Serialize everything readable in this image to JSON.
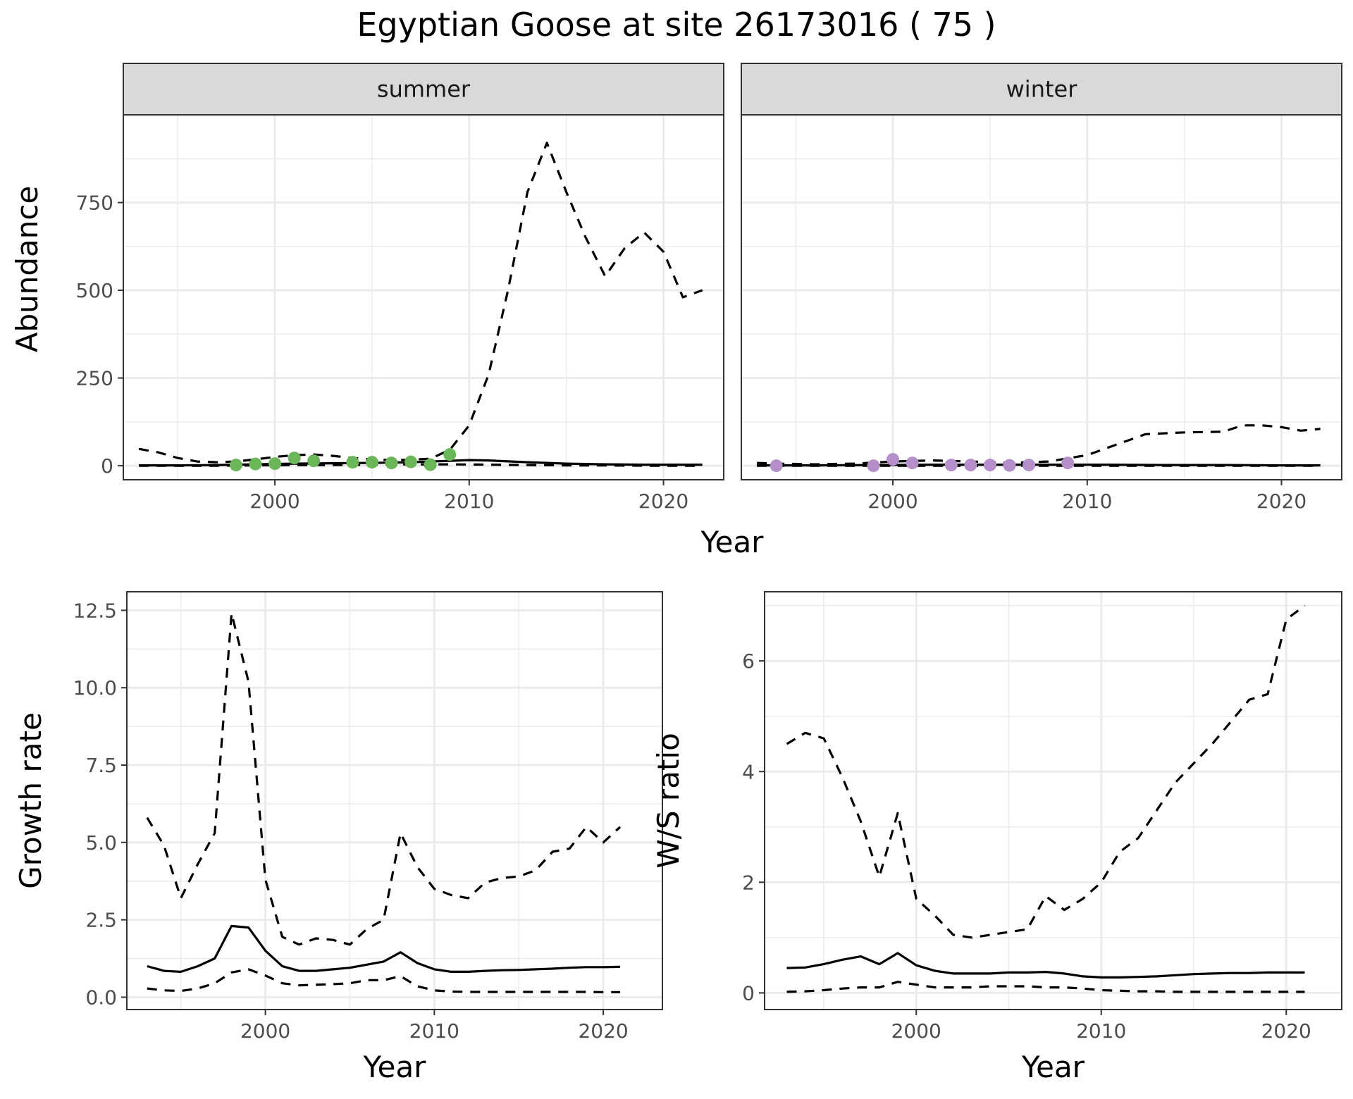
{
  "title": "Egyptian Goose at site 26173016 ( 75 )",
  "colors": {
    "summer_points": "#6ab659",
    "winter_points": "#b48fc9",
    "grid": "#ebebeb",
    "strip": "#d9d9d9",
    "line": "#000000"
  },
  "chart_data": [
    {
      "type": "line",
      "panel": "summer",
      "strip_label": "summer",
      "xlabel": "Year",
      "ylabel": "Abundance",
      "xlim": [
        1992.2,
        2023.1
      ],
      "ylim": [
        -40,
        1000
      ],
      "x_ticks": [
        2000,
        2010,
        2020
      ],
      "y_ticks": [
        0,
        250,
        500,
        750
      ],
      "series": [
        {
          "style": "solid",
          "x": [
            1993,
            1995,
            1997,
            1999,
            2001,
            2003,
            2005,
            2007,
            2009,
            2010,
            2011,
            2013,
            2015,
            2017,
            2019,
            2021,
            2022
          ],
          "y": [
            1,
            1,
            2,
            4,
            6,
            7,
            8,
            10,
            14,
            16,
            15,
            10,
            6,
            4,
            3,
            3,
            3
          ]
        },
        {
          "style": "dashed-upper",
          "x": [
            1993,
            1994,
            1995,
            1996,
            1997,
            1998,
            1999,
            2000,
            2001,
            2002,
            2003,
            2004,
            2005,
            2006,
            2007,
            2008,
            2009,
            2010,
            2011,
            2012,
            2013,
            2014,
            2015,
            2016,
            2017,
            2018,
            2019,
            2020,
            2021,
            2022
          ],
          "y": [
            48,
            38,
            22,
            12,
            10,
            12,
            18,
            25,
            30,
            32,
            28,
            22,
            18,
            16,
            17,
            20,
            45,
            115,
            260,
            500,
            780,
            920,
            780,
            650,
            540,
            620,
            665,
            610,
            480,
            500
          ]
        },
        {
          "style": "dashed-lower",
          "x": [
            1993,
            1995,
            1997,
            1999,
            2001,
            2003,
            2005,
            2007,
            2009,
            2011,
            2013,
            2015,
            2017,
            2019,
            2021,
            2022
          ],
          "y": [
            0,
            0,
            0,
            1,
            2,
            2,
            3,
            4,
            4,
            3,
            2,
            1,
            1,
            0,
            0,
            0
          ]
        },
        {
          "style": "points",
          "x": [
            1998,
            1999,
            2000,
            2001,
            2002,
            2004,
            2005,
            2006,
            2007,
            2008,
            2009
          ],
          "y": [
            2,
            5,
            6,
            22,
            14,
            10,
            10,
            8,
            11,
            3,
            32
          ]
        }
      ]
    },
    {
      "type": "line",
      "panel": "winter",
      "strip_label": "winter",
      "xlabel": "Year",
      "ylabel": "",
      "xlim": [
        1992.2,
        2023.1
      ],
      "ylim": [
        -40,
        1000
      ],
      "x_ticks": [
        2000,
        2010,
        2020
      ],
      "y_ticks": [
        0,
        250,
        500,
        750
      ],
      "series": [
        {
          "style": "solid",
          "x": [
            1993,
            1996,
            1999,
            2002,
            2005,
            2008,
            2011,
            2014,
            2017,
            2020,
            2022
          ],
          "y": [
            1,
            1,
            2,
            3,
            3,
            3,
            3,
            2,
            2,
            1,
            1
          ]
        },
        {
          "style": "dashed-upper",
          "x": [
            1993,
            1994,
            1996,
            1998,
            2000,
            2002,
            2004,
            2006,
            2008,
            2010,
            2012,
            2013,
            2015,
            2017,
            2018,
            2019,
            2020,
            2021,
            2022
          ],
          "y": [
            8,
            6,
            4,
            6,
            12,
            15,
            12,
            8,
            12,
            30,
            70,
            90,
            95,
            97,
            115,
            115,
            110,
            100,
            105
          ]
        },
        {
          "style": "dashed-lower",
          "x": [
            1993,
            1996,
            2000,
            2004,
            2008,
            2012,
            2016,
            2020,
            2022
          ],
          "y": [
            0,
            0,
            0,
            0,
            0,
            0,
            0,
            0,
            0
          ]
        },
        {
          "style": "points",
          "x": [
            1994,
            1999,
            2000,
            2001,
            2003,
            2004,
            2005,
            2006,
            2007,
            2009
          ],
          "y": [
            0,
            0,
            18,
            8,
            2,
            2,
            2,
            1,
            2,
            8
          ]
        }
      ]
    },
    {
      "type": "line",
      "panel": "growth",
      "xlabel": "Year",
      "ylabel": "Growth rate",
      "xlim": [
        1991.8,
        2023.5
      ],
      "ylim": [
        -0.4,
        13.1
      ],
      "x_ticks": [
        2000,
        2010,
        2020
      ],
      "y_ticks": [
        0.0,
        2.5,
        5.0,
        7.5,
        10.0,
        12.5
      ],
      "y_tick_labels": [
        "0.0",
        "2.5",
        "5.0",
        "7.5",
        "10.0",
        "12.5"
      ],
      "series": [
        {
          "style": "solid",
          "x": [
            1993,
            1994,
            1995,
            1996,
            1997,
            1998,
            1999,
            2000,
            2001,
            2002,
            2003,
            2004,
            2005,
            2006,
            2007,
            2008,
            2009,
            2010,
            2011,
            2012,
            2013,
            2014,
            2015,
            2016,
            2017,
            2018,
            2019,
            2020,
            2021
          ],
          "y": [
            1.0,
            0.85,
            0.82,
            1.0,
            1.25,
            2.3,
            2.25,
            1.5,
            1.0,
            0.85,
            0.85,
            0.9,
            0.95,
            1.05,
            1.15,
            1.45,
            1.1,
            0.9,
            0.82,
            0.82,
            0.85,
            0.87,
            0.88,
            0.9,
            0.92,
            0.95,
            0.97,
            0.97,
            0.98
          ]
        },
        {
          "style": "dashed-upper",
          "x": [
            1993,
            1994,
            1995,
            1996,
            1997,
            1998,
            1999,
            2000,
            2001,
            2002,
            2003,
            2004,
            2005,
            2006,
            2007,
            2008,
            2009,
            2010,
            2011,
            2012,
            2013,
            2014,
            2015,
            2016,
            2017,
            2018,
            2019,
            2020,
            2021
          ],
          "y": [
            5.8,
            4.9,
            3.2,
            4.3,
            5.3,
            12.4,
            10.2,
            3.8,
            1.95,
            1.7,
            1.9,
            1.85,
            1.7,
            2.2,
            2.5,
            5.3,
            4.2,
            3.5,
            3.3,
            3.2,
            3.7,
            3.85,
            3.9,
            4.1,
            4.7,
            4.8,
            5.5,
            5.0,
            5.5
          ]
        },
        {
          "style": "dashed-lower",
          "x": [
            1993,
            1994,
            1995,
            1996,
            1997,
            1998,
            1999,
            2000,
            2001,
            2002,
            2003,
            2004,
            2005,
            2006,
            2007,
            2008,
            2009,
            2010,
            2011,
            2012,
            2013,
            2014,
            2015,
            2016,
            2017,
            2018,
            2019,
            2020,
            2021
          ],
          "y": [
            0.28,
            0.22,
            0.2,
            0.28,
            0.45,
            0.8,
            0.9,
            0.7,
            0.45,
            0.38,
            0.4,
            0.42,
            0.45,
            0.55,
            0.55,
            0.68,
            0.35,
            0.22,
            0.18,
            0.17,
            0.17,
            0.17,
            0.17,
            0.17,
            0.17,
            0.17,
            0.17,
            0.16,
            0.16
          ]
        }
      ]
    },
    {
      "type": "line",
      "panel": "ws_ratio",
      "xlabel": "Year",
      "ylabel": "W/S ratio",
      "xlim": [
        1991.8,
        2023.0
      ],
      "ylim": [
        -0.3,
        7.25
      ],
      "x_ticks": [
        2000,
        2010,
        2020
      ],
      "y_ticks": [
        0,
        2,
        4,
        6
      ],
      "series": [
        {
          "style": "solid",
          "x": [
            1993,
            1994,
            1995,
            1996,
            1997,
            1998,
            1999,
            2000,
            2001,
            2002,
            2003,
            2004,
            2005,
            2006,
            2007,
            2008,
            2009,
            2010,
            2011,
            2012,
            2013,
            2014,
            2015,
            2016,
            2017,
            2018,
            2019,
            2020,
            2021
          ],
          "y": [
            0.45,
            0.46,
            0.52,
            0.6,
            0.66,
            0.52,
            0.72,
            0.5,
            0.4,
            0.35,
            0.35,
            0.35,
            0.37,
            0.37,
            0.38,
            0.35,
            0.3,
            0.28,
            0.28,
            0.29,
            0.3,
            0.32,
            0.34,
            0.35,
            0.36,
            0.36,
            0.37,
            0.37,
            0.37
          ]
        },
        {
          "style": "dashed-upper",
          "x": [
            1993,
            1994,
            1995,
            1996,
            1997,
            1998,
            1999,
            2000,
            2001,
            2002,
            2003,
            2004,
            2005,
            2006,
            2007,
            2008,
            2009,
            2010,
            2011,
            2012,
            2013,
            2014,
            2015,
            2016,
            2017,
            2018,
            2019,
            2020,
            2021
          ],
          "y": [
            4.5,
            4.7,
            4.6,
            3.9,
            3.1,
            2.1,
            3.25,
            1.7,
            1.4,
            1.05,
            1.0,
            1.05,
            1.1,
            1.15,
            1.75,
            1.5,
            1.7,
            2.0,
            2.55,
            2.8,
            3.3,
            3.8,
            4.15,
            4.5,
            4.9,
            5.3,
            5.4,
            6.75,
            7.0
          ]
        },
        {
          "style": "dashed-lower",
          "x": [
            1993,
            1994,
            1995,
            1996,
            1997,
            1998,
            1999,
            2000,
            2001,
            2002,
            2003,
            2004,
            2005,
            2006,
            2007,
            2008,
            2009,
            2010,
            2011,
            2012,
            2013,
            2014,
            2015,
            2016,
            2017,
            2018,
            2019,
            2020,
            2021
          ],
          "y": [
            0.02,
            0.03,
            0.05,
            0.08,
            0.1,
            0.1,
            0.2,
            0.15,
            0.1,
            0.1,
            0.1,
            0.12,
            0.12,
            0.12,
            0.1,
            0.1,
            0.08,
            0.05,
            0.04,
            0.03,
            0.03,
            0.02,
            0.02,
            0.02,
            0.02,
            0.02,
            0.02,
            0.02,
            0.02
          ]
        }
      ]
    }
  ]
}
